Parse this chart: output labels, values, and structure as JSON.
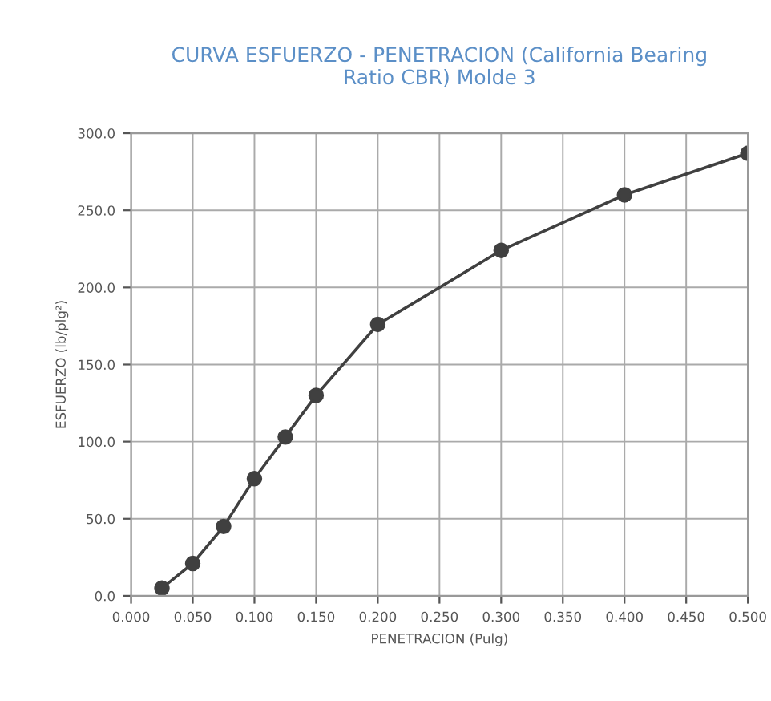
{
  "chart_data": {
    "type": "line",
    "title": "CURVA ESFUERZO - PENETRACION (California Bearing\nRatio CBR) Molde 3",
    "xlabel": "PENETRACION (Pulg)",
    "ylabel": "ESFUERZO (lb/plg²)",
    "x": [
      0.025,
      0.05,
      0.075,
      0.1,
      0.125,
      0.15,
      0.2,
      0.3,
      0.4,
      0.5
    ],
    "series": [
      {
        "color": "#404040",
        "values": [
          5,
          21,
          45,
          76,
          103,
          130,
          176,
          224,
          260,
          287
        ]
      }
    ],
    "xlim": [
      0,
      0.5
    ],
    "ylim": [
      0,
      300
    ],
    "xticks": [
      {
        "value": 0,
        "label": "0.000"
      },
      {
        "value": 0.05,
        "label": "0.050"
      },
      {
        "value": 0.1,
        "label": "0.100"
      },
      {
        "value": 0.15,
        "label": "0.150"
      },
      {
        "value": 0.2,
        "label": "0.200"
      },
      {
        "value": 0.25,
        "label": "0.250"
      },
      {
        "value": 0.3,
        "label": "0.300"
      },
      {
        "value": 0.35,
        "label": "0.350"
      },
      {
        "value": 0.4,
        "label": "0.400"
      },
      {
        "value": 0.45,
        "label": "0.450"
      },
      {
        "value": 0.5,
        "label": "0.500"
      }
    ],
    "yticks": [
      {
        "value": 0,
        "label": "0.0"
      },
      {
        "value": 50,
        "label": "50.0"
      },
      {
        "value": 100,
        "label": "100.0"
      },
      {
        "value": 150,
        "label": "150.0"
      },
      {
        "value": 200,
        "label": "200.0"
      },
      {
        "value": 250,
        "label": "250.0"
      },
      {
        "value": 300,
        "label": "300.0"
      }
    ],
    "grid": true,
    "marker": "circle",
    "line_style": "solid"
  }
}
